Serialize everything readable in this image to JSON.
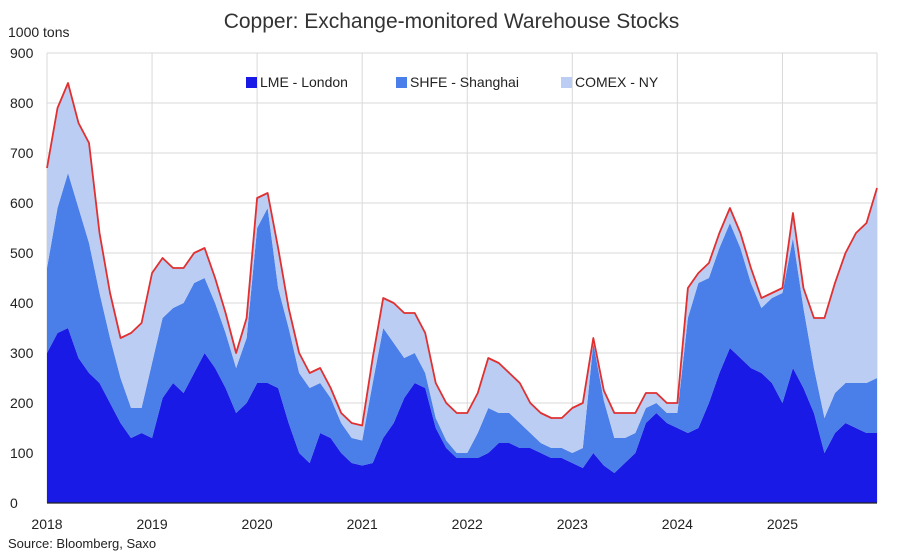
{
  "chart_data": {
    "type": "area",
    "stacked": true,
    "title": "Copper: Exchange-monitored Warehouse Stocks",
    "ylabel": "1000 tons",
    "source": "Source: Bloomberg, Saxo",
    "ylim": [
      0,
      900
    ],
    "yticks": [
      0,
      100,
      200,
      300,
      400,
      500,
      600,
      700,
      800,
      900
    ],
    "xlim": [
      2018.0,
      2025.9
    ],
    "xticks": [
      2018,
      2019,
      2020,
      2021,
      2022,
      2023,
      2024,
      2025
    ],
    "grid": true,
    "legend_position": "top",
    "colors": {
      "lme": "#1a1ae6",
      "shfe": "#4a7ee8",
      "comex": "#bccdf3",
      "total_line": "#e03030",
      "grid": "#d9d9d9"
    },
    "x": [
      2018.0,
      2018.1,
      2018.2,
      2018.3,
      2018.4,
      2018.5,
      2018.6,
      2018.7,
      2018.8,
      2018.9,
      2019.0,
      2019.1,
      2019.2,
      2019.3,
      2019.4,
      2019.5,
      2019.6,
      2019.7,
      2019.8,
      2019.9,
      2020.0,
      2020.1,
      2020.2,
      2020.3,
      2020.4,
      2020.5,
      2020.6,
      2020.7,
      2020.8,
      2020.9,
      2021.0,
      2021.1,
      2021.2,
      2021.3,
      2021.4,
      2021.5,
      2021.6,
      2021.7,
      2021.8,
      2021.9,
      2022.0,
      2022.1,
      2022.2,
      2022.3,
      2022.4,
      2022.5,
      2022.6,
      2022.7,
      2022.8,
      2022.9,
      2023.0,
      2023.1,
      2023.2,
      2023.3,
      2023.4,
      2023.5,
      2023.6,
      2023.7,
      2023.8,
      2023.9,
      2024.0,
      2024.1,
      2024.2,
      2024.3,
      2024.4,
      2024.5,
      2024.6,
      2024.7,
      2024.8,
      2024.9,
      2025.0,
      2025.1,
      2025.2,
      2025.3,
      2025.4,
      2025.5,
      2025.6,
      2025.7,
      2025.8,
      2025.9
    ],
    "series": [
      {
        "name": "LME - London",
        "values": [
          300,
          340,
          350,
          290,
          260,
          240,
          200,
          160,
          130,
          140,
          130,
          210,
          240,
          220,
          260,
          300,
          270,
          230,
          180,
          200,
          240,
          240,
          230,
          160,
          100,
          80,
          140,
          130,
          100,
          80,
          75,
          80,
          130,
          160,
          210,
          240,
          230,
          150,
          110,
          90,
          90,
          90,
          100,
          120,
          120,
          110,
          110,
          100,
          90,
          90,
          80,
          70,
          100,
          75,
          60,
          80,
          100,
          160,
          180,
          160,
          150,
          140,
          150,
          200,
          260,
          310,
          290,
          270,
          260,
          240,
          200,
          270,
          230,
          180,
          100,
          140,
          160,
          150,
          140,
          140
        ]
      },
      {
        "name": "SHFE - Shanghai",
        "values": [
          170,
          250,
          310,
          300,
          260,
          180,
          130,
          90,
          60,
          50,
          150,
          160,
          150,
          180,
          180,
          150,
          130,
          110,
          90,
          130,
          310,
          350,
          200,
          190,
          160,
          150,
          100,
          80,
          60,
          50,
          50,
          160,
          220,
          160,
          80,
          60,
          30,
          20,
          15,
          10,
          10,
          50,
          90,
          60,
          60,
          50,
          30,
          20,
          20,
          20,
          20,
          40,
          220,
          130,
          70,
          50,
          40,
          30,
          20,
          20,
          30,
          230,
          290,
          250,
          250,
          250,
          220,
          170,
          130,
          170,
          220,
          260,
          160,
          90,
          70,
          80,
          80,
          90,
          100,
          110
        ]
      },
      {
        "name": "COMEX - NY",
        "values": [
          200,
          200,
          180,
          170,
          200,
          120,
          90,
          80,
          150,
          170,
          180,
          120,
          80,
          70,
          60,
          60,
          50,
          40,
          30,
          40,
          60,
          30,
          80,
          40,
          40,
          30,
          30,
          20,
          20,
          30,
          30,
          50,
          60,
          80,
          90,
          80,
          80,
          70,
          75,
          80,
          80,
          80,
          100,
          100,
          80,
          80,
          60,
          60,
          60,
          60,
          90,
          90,
          10,
          20,
          50,
          50,
          40,
          30,
          20,
          20,
          20,
          60,
          20,
          30,
          30,
          30,
          30,
          30,
          20,
          10,
          10,
          50,
          40,
          100,
          200,
          220,
          260,
          300,
          320,
          380
        ]
      }
    ]
  }
}
